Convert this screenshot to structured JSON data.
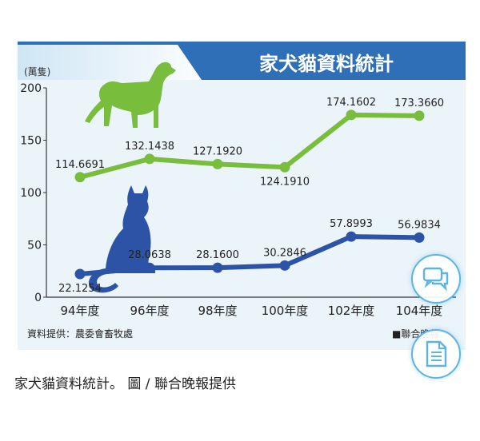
{
  "caption": "家犬貓資料統計。 圖 / 聯合晚報提供",
  "buttons": {
    "comment_icon": "chat-bubbles-icon",
    "document_icon": "document-icon"
  },
  "colors": {
    "dog_series": "#78bd3b",
    "cat_series": "#2d53a6",
    "title_bar": "#2e6fb8",
    "background": "#eaf4f9"
  },
  "chart_data": {
    "type": "line",
    "title": "家犬貓資料統計",
    "ylabel": "(萬隻)",
    "xlabel": "",
    "source": "資料提供：農委會畜牧處",
    "credit": "■聯合晚報",
    "categories": [
      "94年度",
      "96年度",
      "98年度",
      "100年度",
      "102年度",
      "104年度"
    ],
    "ylim": [
      0,
      200
    ],
    "yticks": [
      0,
      50,
      100,
      150,
      200
    ],
    "grid": false,
    "series": [
      {
        "values": [
          114.6691,
          132.1438,
          127.192,
          124.191,
          174.1602,
          173.366
        ],
        "labels": [
          "114.6691",
          "132.1438",
          "127.1920",
          "124.1910",
          "174.1602",
          "173.3660"
        ],
        "color": "#78bd3b",
        "icon": "dog-icon"
      },
      {
        "values": [
          22.1254,
          28.0638,
          28.16,
          30.2846,
          57.8993,
          56.9834
        ],
        "labels": [
          "22.1254",
          "28.0638",
          "28.1600",
          "30.2846",
          "57.8993",
          "56.9834"
        ],
        "color": "#2d53a6",
        "icon": "cat-icon"
      }
    ]
  }
}
